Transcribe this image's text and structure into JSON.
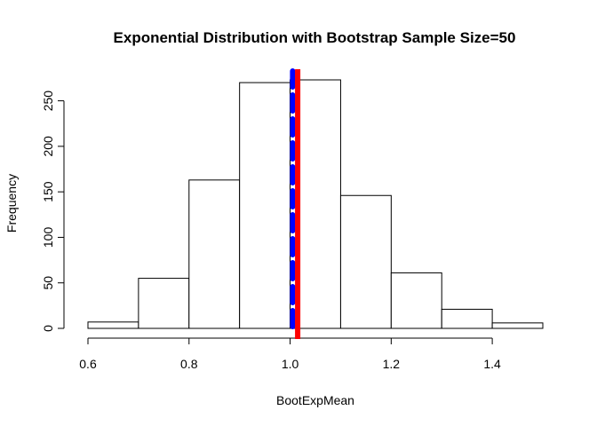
{
  "chart_data": {
    "type": "bar",
    "title": "Exponential Distribution with Bootstrap Sample Size=50",
    "xlabel": "BootExpMean",
    "ylabel": "Frequency",
    "bins": [
      {
        "start": 0.6,
        "end": 0.7,
        "count": 7
      },
      {
        "start": 0.7,
        "end": 0.8,
        "count": 55
      },
      {
        "start": 0.8,
        "end": 0.9,
        "count": 163
      },
      {
        "start": 0.9,
        "end": 1.0,
        "count": 270
      },
      {
        "start": 1.0,
        "end": 1.1,
        "count": 273
      },
      {
        "start": 1.1,
        "end": 1.2,
        "count": 146
      },
      {
        "start": 1.2,
        "end": 1.3,
        "count": 61
      },
      {
        "start": 1.3,
        "end": 1.4,
        "count": 21
      },
      {
        "start": 1.4,
        "end": 1.5,
        "count": 6
      }
    ],
    "xlim": [
      0.6,
      1.5
    ],
    "ylim": [
      0,
      273
    ],
    "x_ticks": [
      0.6,
      0.8,
      1.0,
      1.2,
      1.4
    ],
    "x_tick_labels": [
      "0.6",
      "0.8",
      "1.0",
      "1.2",
      "1.4"
    ],
    "y_ticks": [
      0,
      50,
      100,
      150,
      200,
      250
    ],
    "y_tick_labels": [
      "0",
      "50",
      "100",
      "150",
      "200",
      "250"
    ],
    "vertical_lines": [
      {
        "x": 1.005,
        "color": "#0000ff",
        "style": "dashed"
      },
      {
        "x": 1.015,
        "color": "#ff0000",
        "style": "solid"
      }
    ],
    "grid": false,
    "bar_fill": "#ffffff",
    "bar_stroke": "#000000"
  }
}
